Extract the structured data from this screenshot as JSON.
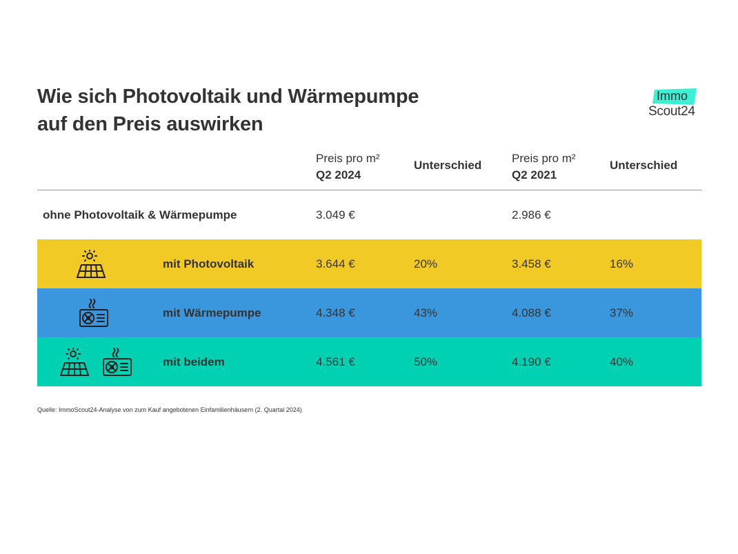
{
  "title": {
    "line1": "Wie sich Photovoltaik und Wärmepumpe",
    "line2": "auf den Preis auswirken"
  },
  "logo": {
    "line1": "Immo",
    "line2": "Scout24",
    "accent": "#3cf0d4"
  },
  "header": {
    "price_2024_line1": "Preis pro m²",
    "price_2024_line2": "Q2 2024",
    "diff_2024": "Unterschied",
    "price_2021_line1": "Preis pro m²",
    "price_2021_line2": "Q2 2021",
    "diff_2021": "Unterschied"
  },
  "rows": [
    {
      "label": "ohne Photovoltaik & Wärmepumpe",
      "price_2024": "3.049 €",
      "diff_2024": "",
      "price_2021": "2.986 €",
      "diff_2021": "",
      "color": "#ffffff",
      "icons": []
    },
    {
      "label": "mit Photovoltaik",
      "price_2024": "3.644 €",
      "diff_2024": "20%",
      "price_2021": "3.458 €",
      "diff_2021": "16%",
      "color": "#f2ca26",
      "icons": [
        "solar-panel-icon"
      ]
    },
    {
      "label": "mit Wärmepumpe",
      "price_2024": "4.348 €",
      "diff_2024": "43%",
      "price_2021": "4.088 €",
      "diff_2021": "37%",
      "color": "#3b97dd",
      "icons": [
        "heat-pump-icon"
      ]
    },
    {
      "label": "mit beidem",
      "price_2024": "4.561 €",
      "diff_2024": "50%",
      "price_2021": "4.190 €",
      "diff_2021": "40%",
      "color": "#00d1b2",
      "icons": [
        "solar-panel-icon",
        "heat-pump-icon"
      ]
    }
  ],
  "chart_data": {
    "type": "table",
    "title": "Wie sich Photovoltaik und Wärmepumpe auf den Preis auswirken",
    "columns": [
      "Preis pro m² Q2 2024",
      "Unterschied",
      "Preis pro m² Q2 2021",
      "Unterschied"
    ],
    "categories": [
      "ohne Photovoltaik & Wärmepumpe",
      "mit Photovoltaik",
      "mit Wärmepumpe",
      "mit beidem"
    ],
    "series": [
      {
        "name": "Preis pro m² Q2 2024",
        "values": [
          3049,
          3644,
          4348,
          4561
        ],
        "unit": "€"
      },
      {
        "name": "Unterschied Q2 2024",
        "values": [
          null,
          20,
          43,
          50
        ],
        "unit": "%"
      },
      {
        "name": "Preis pro m² Q2 2021",
        "values": [
          2986,
          3458,
          4088,
          4190
        ],
        "unit": "€"
      },
      {
        "name": "Unterschied Q2 2021",
        "values": [
          null,
          16,
          37,
          40
        ],
        "unit": "%"
      }
    ]
  },
  "source": "Quelle: ImmoScout24-Analyse von zum Kauf angebotenen Einfamilienhäusern (2. Quartal 2024)"
}
